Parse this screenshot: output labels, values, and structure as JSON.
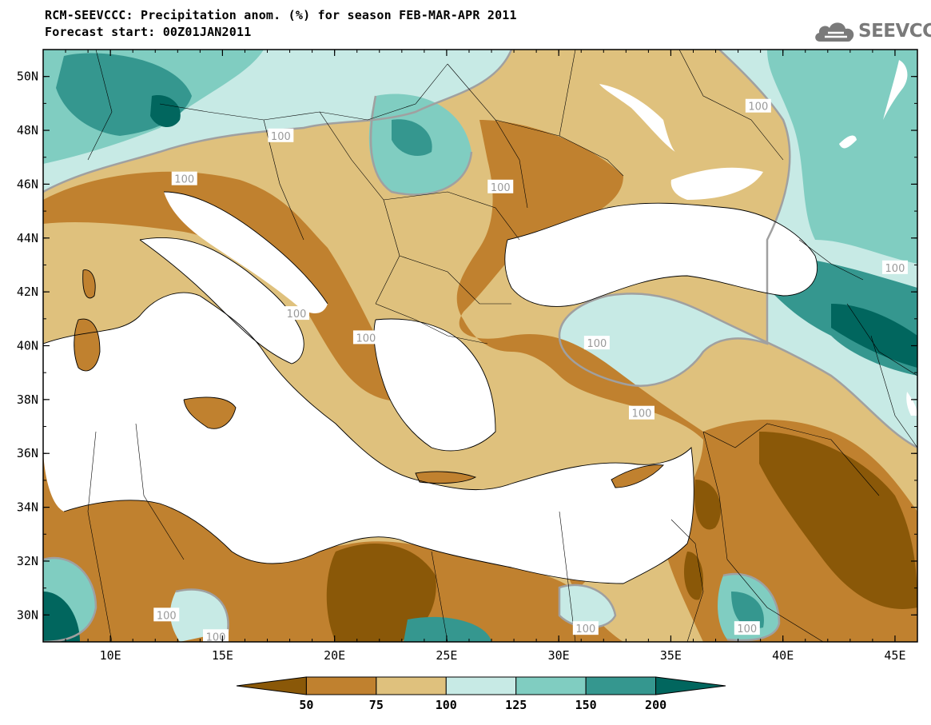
{
  "header": {
    "title_line1": "RCM-SEEVCCC: Precipitation anom. (%) for season FEB-MAR-APR 2011",
    "title_line2": "Forecast start: 00Z01JAN2011"
  },
  "logo": {
    "text": "SEEVCCC",
    "icon": "cloud-icon"
  },
  "map": {
    "lon_range": [
      7,
      46
    ],
    "lat_range": [
      29,
      51
    ],
    "lat_ticks": [
      {
        "label": "50N",
        "value": 50
      },
      {
        "label": "48N",
        "value": 48
      },
      {
        "label": "46N",
        "value": 46
      },
      {
        "label": "44N",
        "value": 44
      },
      {
        "label": "42N",
        "value": 42
      },
      {
        "label": "40N",
        "value": 40
      },
      {
        "label": "38N",
        "value": 38
      },
      {
        "label": "36N",
        "value": 36
      },
      {
        "label": "34N",
        "value": 34
      },
      {
        "label": "32N",
        "value": 32
      },
      {
        "label": "30N",
        "value": 30
      }
    ],
    "lon_ticks": [
      {
        "label": "10E",
        "value": 10
      },
      {
        "label": "15E",
        "value": 15
      },
      {
        "label": "20E",
        "value": 20
      },
      {
        "label": "25E",
        "value": 25
      },
      {
        "label": "30E",
        "value": 30
      },
      {
        "label": "35E",
        "value": 35
      },
      {
        "label": "40E",
        "value": 40
      },
      {
        "label": "45E",
        "value": 45
      }
    ],
    "contour_labels": [
      {
        "text": "100",
        "lon": 27.4,
        "lat": 45.9
      },
      {
        "text": "100",
        "lon": 13.3,
        "lat": 46.2
      },
      {
        "text": "100",
        "lon": 17.6,
        "lat": 47.8
      },
      {
        "text": "100",
        "lon": 38.9,
        "lat": 48.9
      },
      {
        "text": "100",
        "lon": 45.0,
        "lat": 42.9
      },
      {
        "text": "100",
        "lon": 31.7,
        "lat": 40.1
      },
      {
        "text": "100",
        "lon": 33.7,
        "lat": 37.5
      },
      {
        "text": "100",
        "lon": 12.5,
        "lat": 30.0
      },
      {
        "text": "100",
        "lon": 14.7,
        "lat": 29.2
      },
      {
        "text": "100",
        "lon": 31.2,
        "lat": 29.5
      },
      {
        "text": "100",
        "lon": 38.4,
        "lat": 29.5
      },
      {
        "text": "100",
        "lon": 21.4,
        "lat": 40.3
      },
      {
        "text": "100",
        "lon": 18.3,
        "lat": 41.2
      }
    ]
  },
  "colors": {
    "lt50": "#8a5808",
    "b50_75": "#c0812f",
    "b75_100": "#dfc17d",
    "b100_125": "#c7eae5",
    "b125_150": "#80cdc1",
    "b150_200": "#35978f",
    "gt200": "#01665e",
    "sea": "#ffffff",
    "contour100": "#a0a0a0"
  },
  "colorbar": {
    "labels": [
      "50",
      "75",
      "100",
      "125",
      "150",
      "200"
    ],
    "colors": [
      "#8a5808",
      "#c0812f",
      "#dfc17d",
      "#c7eae5",
      "#80cdc1",
      "#35978f",
      "#01665e"
    ]
  }
}
